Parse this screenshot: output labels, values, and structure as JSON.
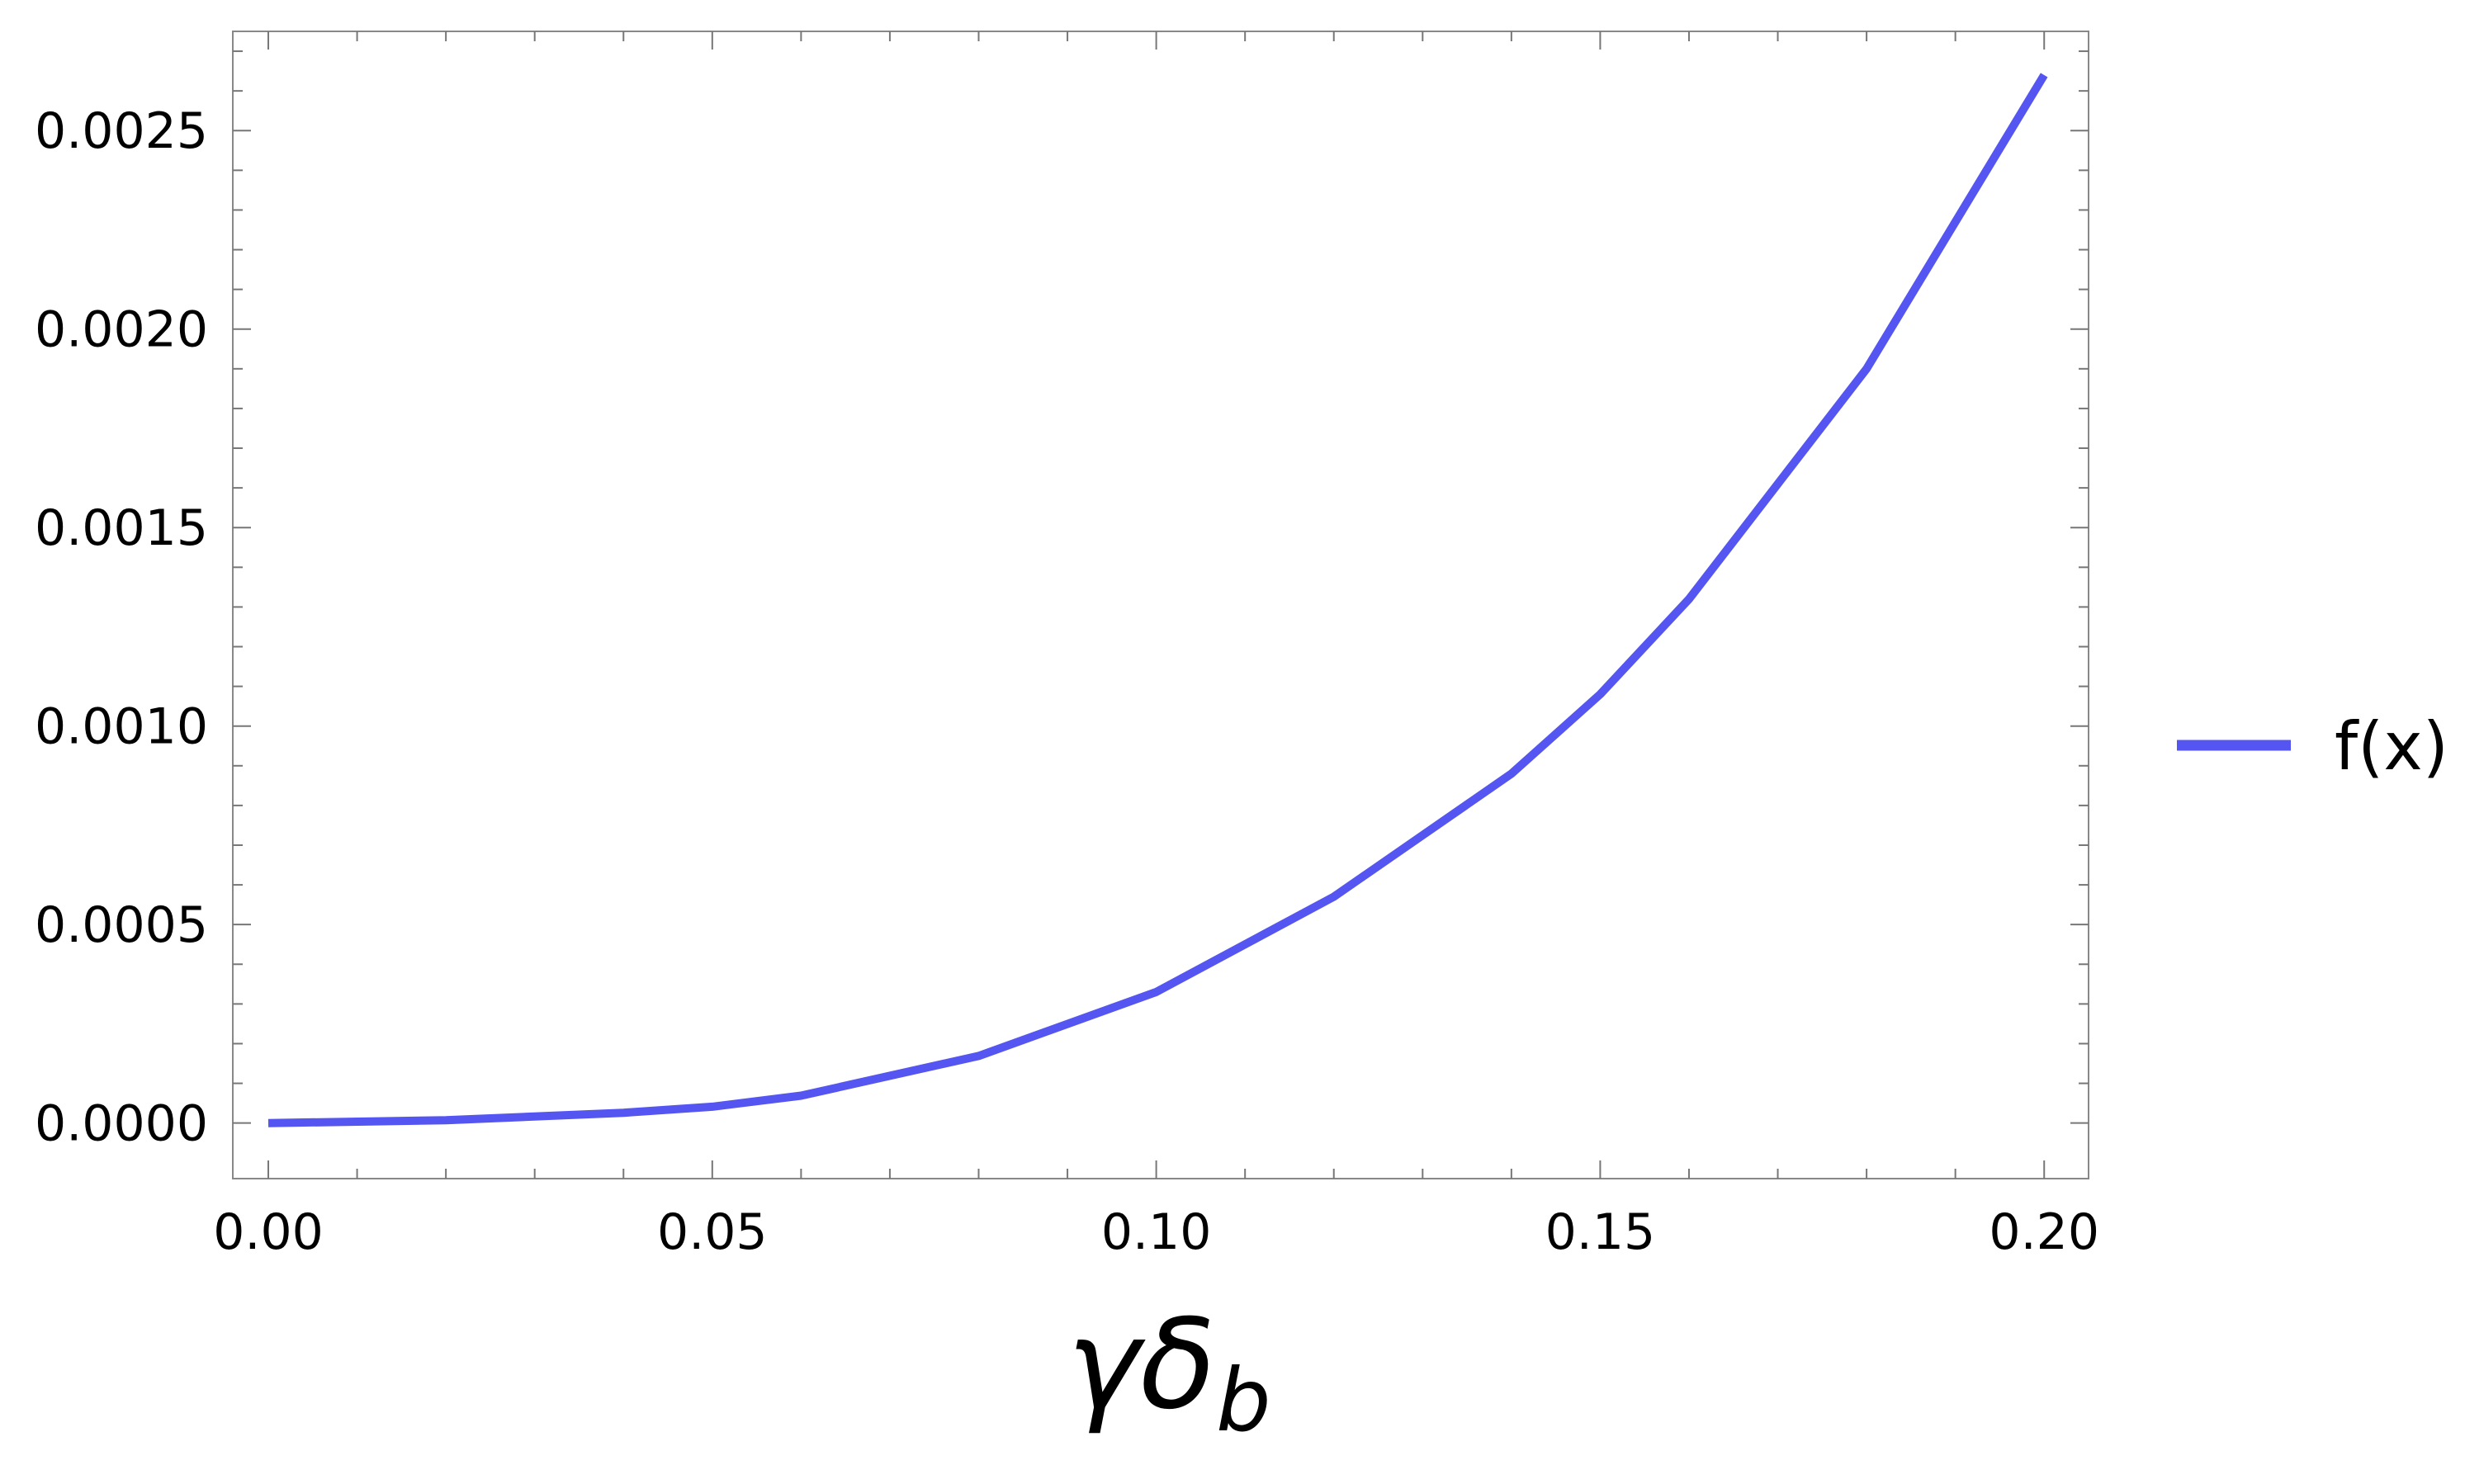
{
  "chart_data": {
    "type": "line",
    "title": "",
    "xlabel": {
      "main": "γδ",
      "sub": "b"
    },
    "ylabel": "",
    "xlim": [
      -0.004,
      0.205
    ],
    "ylim": [
      -0.00014,
      0.00275
    ],
    "x_ticks": [
      0.0,
      0.05,
      0.1,
      0.15,
      0.2
    ],
    "x_tick_labels": [
      "0.00",
      "0.05",
      "0.10",
      "0.15",
      "0.20"
    ],
    "y_ticks": [
      0.0,
      0.0005,
      0.001,
      0.0015,
      0.002,
      0.0025
    ],
    "y_tick_labels": [
      "0.0000",
      "0.0005",
      "0.0010",
      "0.0015",
      "0.0020",
      "0.0025"
    ],
    "grid": false,
    "legend_position": "right",
    "series": [
      {
        "name": "f(x)",
        "color": "#5555f2",
        "x": [
          0.0,
          0.02,
          0.04,
          0.05,
          0.06,
          0.08,
          0.1,
          0.12,
          0.14,
          0.15,
          0.16,
          0.18,
          0.2
        ],
        "y": [
          0.0,
          7e-06,
          2.6e-05,
          4.1e-05,
          6.9e-05,
          0.000169,
          0.00033,
          0.00057,
          0.00088,
          0.00108,
          0.00132,
          0.0019,
          0.00264
        ]
      }
    ]
  }
}
